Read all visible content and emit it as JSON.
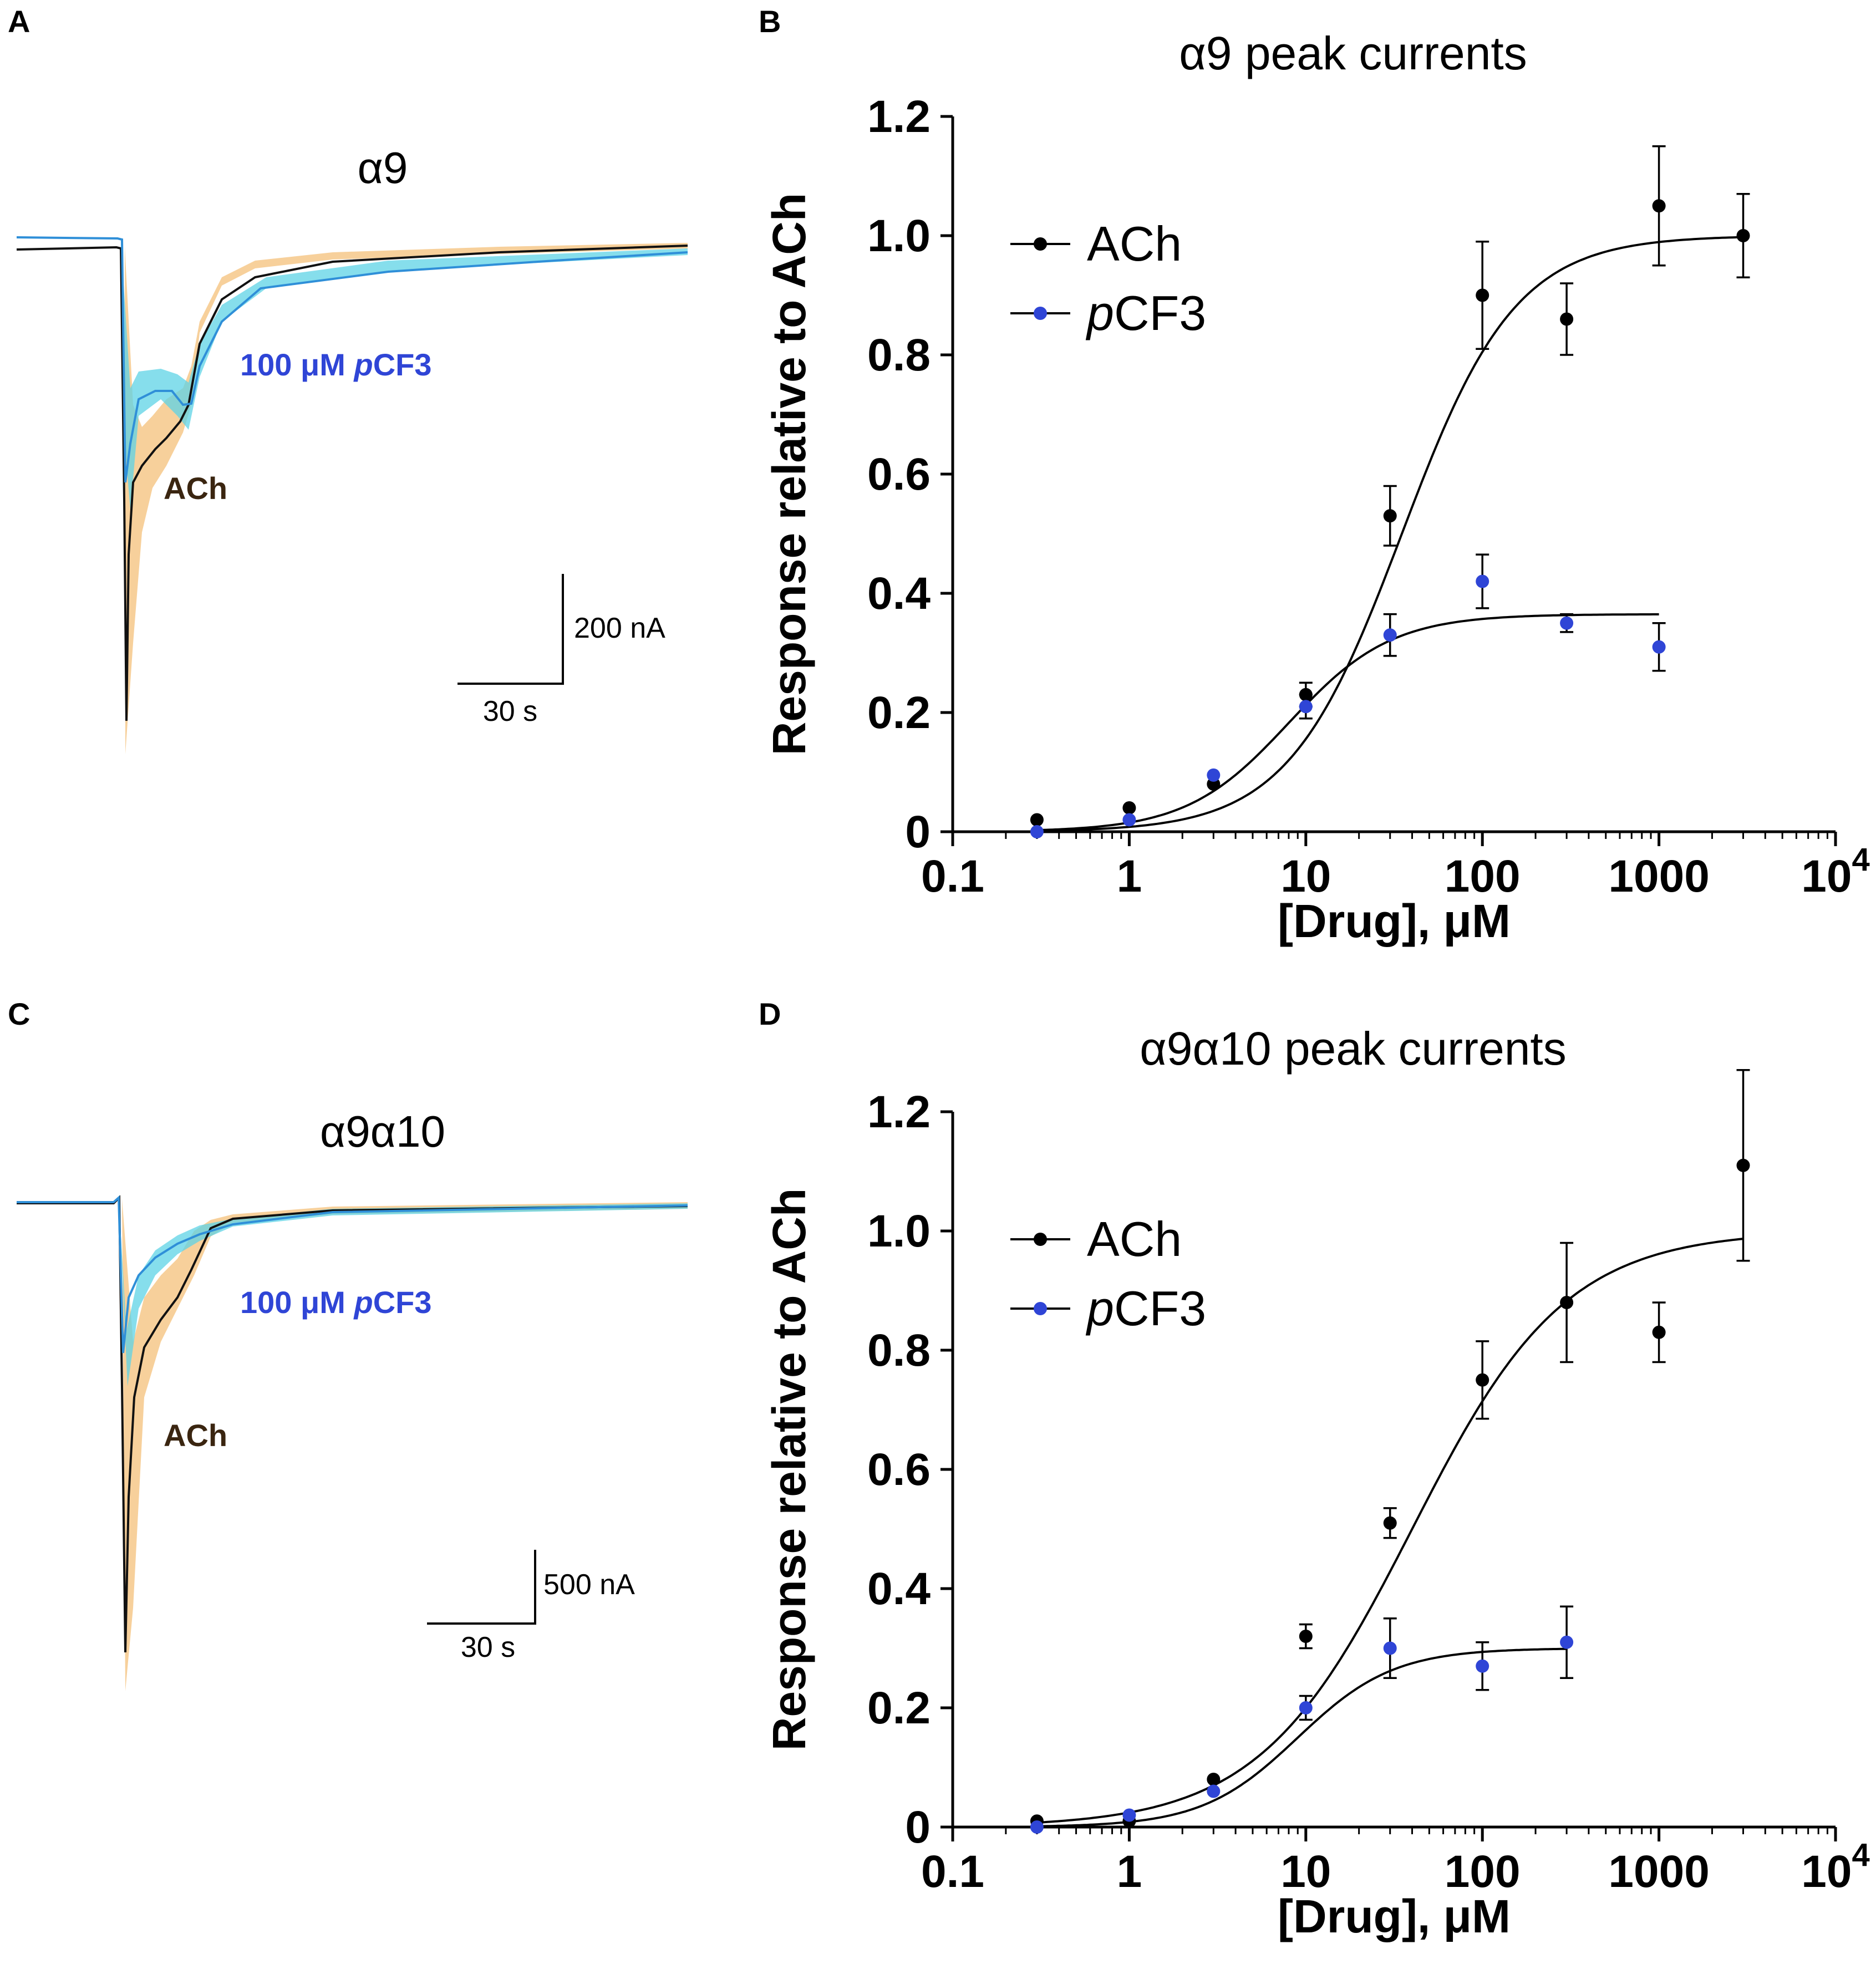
{
  "colors": {
    "ach": "#000000",
    "pcf3": "#2f45d6",
    "ach_band": "#f4c07a",
    "pcf3_band": "#5ed3e6",
    "pcf3_trace": "#2f8fd8"
  },
  "panels": {
    "A": {
      "letter": "A",
      "title": "α9",
      "label_pcf3_prefix": "100 μM ",
      "label_pcf3_italic": "p",
      "label_pcf3_suffix": "CF3",
      "label_ach": "ACh",
      "scale_y": "200 nA",
      "scale_x": "30 s"
    },
    "B": {
      "letter": "B"
    },
    "C": {
      "letter": "C",
      "title": "α9α10",
      "label_pcf3_prefix": "100 μM ",
      "label_pcf3_italic": "p",
      "label_pcf3_suffix": "CF3",
      "label_ach": "ACh",
      "scale_y": "500 nA",
      "scale_x": "30 s"
    },
    "D": {
      "letter": "D"
    }
  },
  "chart_data": [
    {
      "type": "scatter",
      "title": "α9 peak currents",
      "xlabel": "[Drug], μM",
      "ylabel": "Response relative to ACh",
      "xscale": "log",
      "xlim": [
        0.1,
        10000
      ],
      "ylim": [
        0,
        1.2
      ],
      "xticks": [
        "0.1",
        "1",
        "10",
        "100",
        "1000",
        "10"
      ],
      "xtick_last_superscript": "4",
      "yticks": [
        "0",
        "0.2",
        "0.4",
        "0.6",
        "0.8",
        "1.0",
        "1.2"
      ],
      "legend": {
        "position": "top-left",
        "ach": "ACh",
        "pcf3_italic": "p",
        "pcf3_rest": "CF3"
      },
      "series": [
        {
          "name": "ACh",
          "x": [
            0.3,
            1,
            3,
            10,
            30,
            100,
            300,
            1000,
            3000
          ],
          "y": [
            0.02,
            0.04,
            0.08,
            0.23,
            0.53,
            0.9,
            0.86,
            1.05,
            1.0
          ],
          "err": [
            0,
            0,
            0,
            0.02,
            0.05,
            0.09,
            0.06,
            0.1,
            0.07
          ],
          "fit": {
            "bottom": 0,
            "top": 1.0,
            "ec50": 35,
            "hill": 1.35,
            "x_range": [
              0.3,
              3000
            ]
          }
        },
        {
          "name": "pCF3",
          "x": [
            0.3,
            1,
            3,
            10,
            30,
            100,
            300,
            1000
          ],
          "y": [
            0.0,
            0.02,
            0.095,
            0.21,
            0.33,
            0.42,
            0.35,
            0.31
          ],
          "err": [
            0,
            0,
            0,
            0.02,
            0.035,
            0.045,
            0.015,
            0.04
          ],
          "fit": {
            "bottom": 0,
            "top": 0.365,
            "ec50": 8,
            "hill": 1.5,
            "x_range": [
              0.3,
              1000
            ]
          }
        }
      ]
    },
    {
      "type": "scatter",
      "title": "α9α10 peak currents",
      "xlabel": "[Drug], μM",
      "ylabel": "Response relative to ACh",
      "xscale": "log",
      "xlim": [
        0.1,
        10000
      ],
      "ylim": [
        0,
        1.2
      ],
      "xticks": [
        "0.1",
        "1",
        "10",
        "100",
        "1000",
        "10"
      ],
      "xtick_last_superscript": "4",
      "yticks": [
        "0",
        "0.2",
        "0.4",
        "0.6",
        "0.8",
        "1.0",
        "1.2"
      ],
      "legend": {
        "position": "top-left",
        "ach": "ACh",
        "pcf3_italic": "p",
        "pcf3_rest": "CF3"
      },
      "series": [
        {
          "name": "ACh",
          "x": [
            0.3,
            1,
            3,
            10,
            30,
            100,
            300,
            1000,
            3000
          ],
          "y": [
            0.01,
            0.01,
            0.08,
            0.32,
            0.51,
            0.75,
            0.88,
            0.83,
            1.11
          ],
          "err": [
            0,
            0,
            0,
            0.02,
            0.025,
            0.065,
            0.1,
            0.05,
            0.16
          ],
          "fit": {
            "bottom": 0,
            "top": 1.0,
            "ec50": 40,
            "hill": 1.0,
            "x_range": [
              0.3,
              3000
            ]
          }
        },
        {
          "name": "pCF3",
          "x": [
            0.3,
            1,
            3,
            10,
            30,
            100,
            300
          ],
          "y": [
            0.0,
            0.02,
            0.06,
            0.2,
            0.3,
            0.27,
            0.31
          ],
          "err": [
            0,
            0,
            0,
            0.02,
            0.05,
            0.04,
            0.06
          ],
          "fit": {
            "bottom": 0,
            "top": 0.3,
            "ec50": 9,
            "hill": 1.6,
            "x_range": [
              0.3,
              300
            ]
          }
        }
      ]
    }
  ]
}
